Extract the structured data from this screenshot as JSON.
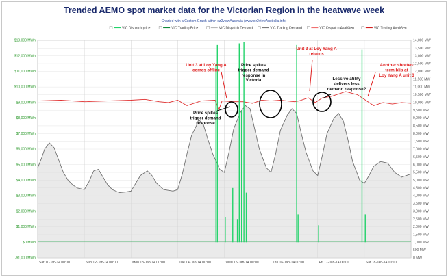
{
  "title": "Trended AEMO spot market data for the Victorian Region in the heatwave week",
  "subtitle": "Charted with a Custom Graph within ez2viewAustralia (www.ez2viewAustralia.info)",
  "legend": [
    {
      "label": "VIC Dispatch price",
      "color": "#22d36a"
    },
    {
      "label": "VIC Trading Price",
      "color": "#0f8a3a"
    },
    {
      "label": "VIC Dispatch Demand",
      "color": "#b8b8b8"
    },
    {
      "label": "VIC Trading Demand",
      "color": "#7a7a7a"
    },
    {
      "label": "VIC Dispatch AvailGen",
      "color": "#f07070"
    },
    {
      "label": "VIC Trading AvailGen",
      "color": "#d42020"
    }
  ],
  "chart_data": {
    "type": "line",
    "y_left_ticks": [
      "$13,000/MWh",
      "$12,000/MWh",
      "$11,000/MWh",
      "$10,000/MWh",
      "$9,000/MWh",
      "$8,000/MWh",
      "$7,000/MWh",
      "$6,000/MWh",
      "$5,000/MWh",
      "$4,000/MWh",
      "$3,000/MWh",
      "$2,000/MWh",
      "$1,000/MWh",
      "$0/MWh",
      "-$1,000/MWh"
    ],
    "y_left_range": [
      -1000,
      13000
    ],
    "y_right_ticks": [
      "14,000 MW",
      "13,500 MW",
      "13,000 MW",
      "12,500 MW",
      "12,000 MW",
      "11,500 MW",
      "11,000 MW",
      "10,500 MW",
      "10,000 MW",
      "9,500 MW",
      "9,000 MW",
      "8,500 MW",
      "8,000 MW",
      "7,500 MW",
      "7,000 MW",
      "6,500 MW",
      "6,000 MW",
      "5,500 MW",
      "5,000 MW",
      "4,500 MW",
      "4,000 MW",
      "3,500 MW",
      "3,000 MW",
      "2,500 MW",
      "2,000 MW",
      "1,500 MW",
      "1,000 MW",
      "500 MW",
      "0 MW"
    ],
    "y_right_range": [
      0,
      14000
    ],
    "x_ticks": [
      "Sat 11-Jan-14 00:00",
      "Sun 12-Jan-14 00:00",
      "Mon 13-Jan-14 00:00",
      "Tue 14-Jan-14 00:00",
      "Wed 15-Jan-14 00:00",
      "Thu 16-Jan-14 00:00",
      "Fri 17-Jan-14 00:00",
      "Sat 18-Jan-14 00:00"
    ],
    "x_range_days": [
      0,
      8
    ],
    "demand_mw": [
      [
        0,
        5800
      ],
      [
        0.08,
        6400
      ],
      [
        0.15,
        7000
      ],
      [
        0.25,
        7400
      ],
      [
        0.35,
        7100
      ],
      [
        0.45,
        6300
      ],
      [
        0.55,
        5500
      ],
      [
        0.65,
        5000
      ],
      [
        0.75,
        4700
      ],
      [
        0.85,
        4500
      ],
      [
        1.0,
        4400
      ],
      [
        1.1,
        4900
      ],
      [
        1.2,
        5600
      ],
      [
        1.3,
        5700
      ],
      [
        1.4,
        5200
      ],
      [
        1.5,
        4700
      ],
      [
        1.6,
        4400
      ],
      [
        1.75,
        4200
      ],
      [
        1.9,
        4250
      ],
      [
        2.0,
        4300
      ],
      [
        2.1,
        4800
      ],
      [
        2.2,
        5300
      ],
      [
        2.35,
        5600
      ],
      [
        2.45,
        5300
      ],
      [
        2.55,
        4800
      ],
      [
        2.7,
        4400
      ],
      [
        2.9,
        4300
      ],
      [
        3.0,
        4400
      ],
      [
        3.1,
        5400
      ],
      [
        3.2,
        6700
      ],
      [
        3.3,
        7900
      ],
      [
        3.4,
        8500
      ],
      [
        3.45,
        8900
      ],
      [
        3.55,
        8600
      ],
      [
        3.65,
        7600
      ],
      [
        3.75,
        6700
      ],
      [
        3.9,
        5700
      ],
      [
        4.0,
        5500
      ],
      [
        4.1,
        6800
      ],
      [
        4.2,
        8300
      ],
      [
        4.35,
        9400
      ],
      [
        4.45,
        9800
      ],
      [
        4.55,
        9600
      ],
      [
        4.65,
        8300
      ],
      [
        4.75,
        7000
      ],
      [
        4.9,
        5800
      ],
      [
        5.0,
        5500
      ],
      [
        5.1,
        6700
      ],
      [
        5.2,
        8200
      ],
      [
        5.35,
        9200
      ],
      [
        5.45,
        9600
      ],
      [
        5.55,
        9300
      ],
      [
        5.65,
        8000
      ],
      [
        5.75,
        6800
      ],
      [
        5.9,
        5600
      ],
      [
        6.0,
        5300
      ],
      [
        6.1,
        6600
      ],
      [
        6.2,
        8000
      ],
      [
        6.35,
        9000
      ],
      [
        6.45,
        9300
      ],
      [
        6.55,
        8800
      ],
      [
        6.65,
        7600
      ],
      [
        6.75,
        6200
      ],
      [
        6.9,
        5000
      ],
      [
        7.0,
        4800
      ],
      [
        7.1,
        5300
      ],
      [
        7.2,
        5900
      ],
      [
        7.35,
        6200
      ],
      [
        7.5,
        6100
      ],
      [
        7.65,
        5500
      ],
      [
        7.8,
        5200
      ],
      [
        8.0,
        5400
      ]
    ],
    "availgen_mw": [
      [
        0,
        10100
      ],
      [
        0.5,
        10150
      ],
      [
        1.0,
        10050
      ],
      [
        1.5,
        10100
      ],
      [
        2.0,
        10150
      ],
      [
        2.3,
        10200
      ],
      [
        2.6,
        10050
      ],
      [
        2.8,
        10000
      ],
      [
        3.0,
        10150
      ],
      [
        3.2,
        9800
      ],
      [
        3.5,
        10100
      ],
      [
        3.8,
        10150
      ],
      [
        3.88,
        9500
      ],
      [
        3.95,
        10100
      ],
      [
        4.2,
        10050
      ],
      [
        4.4,
        10050
      ],
      [
        4.6,
        9950
      ],
      [
        4.8,
        10150
      ],
      [
        5.0,
        10100
      ],
      [
        5.2,
        10150
      ],
      [
        5.5,
        10050
      ],
      [
        5.6,
        10100
      ],
      [
        5.8,
        10300
      ],
      [
        5.95,
        10000
      ],
      [
        6.1,
        10300
      ],
      [
        6.3,
        10400
      ],
      [
        6.6,
        10700
      ],
      [
        6.85,
        10500
      ],
      [
        7.0,
        10200
      ],
      [
        7.2,
        9800
      ],
      [
        7.4,
        10000
      ],
      [
        7.6,
        9900
      ],
      [
        7.8,
        10000
      ],
      [
        8.0,
        9950
      ]
    ],
    "price_spikes": [
      [
        3.82,
        11500
      ],
      [
        3.85,
        12700
      ],
      [
        4.02,
        1600
      ],
      [
        4.18,
        3500
      ],
      [
        4.28,
        1500
      ],
      [
        4.32,
        12800
      ],
      [
        4.37,
        8500
      ],
      [
        4.42,
        12900
      ],
      [
        4.47,
        3200
      ],
      [
        5.55,
        12700
      ],
      [
        5.58,
        1800
      ],
      [
        6.02,
        1100
      ],
      [
        6.95,
        12400
      ],
      [
        7.02,
        1800
      ]
    ],
    "annotations": [
      {
        "text": [
          "Unit 3 at Loy Yang A",
          "comes offline"
        ],
        "color": "red"
      },
      {
        "text": [
          "Price spikes",
          "trigger demand",
          "response"
        ],
        "color": "black"
      },
      {
        "text": [
          "Price spikes",
          "trigger demand",
          "response in",
          "Victoria"
        ],
        "color": "black"
      },
      {
        "text": [
          "Unit 3 at Loy Yang A",
          "returns"
        ],
        "color": "red"
      },
      {
        "text": [
          "Less volatility",
          "delivers less",
          "demand response?"
        ],
        "color": "black"
      },
      {
        "text": [
          "Another shorter-",
          "term blip at",
          "Loy Yang A unit 3"
        ],
        "color": "red"
      }
    ]
  }
}
